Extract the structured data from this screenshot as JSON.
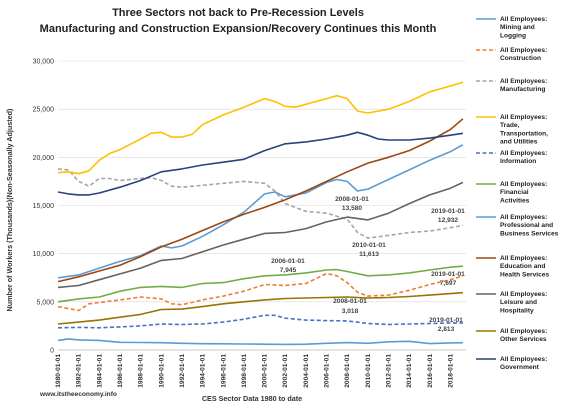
{
  "chart_data": {
    "type": "line",
    "title": "Three Sectors not back to Pre-Recession Levels",
    "subtitle": "Manufacturing and Construction Expansion/Recovery Continues this Month",
    "ylabel": "Number of Workers (Thousands)(Non-Seasonally Adjusted)",
    "xlabel": "CES Sector Data 1980 to date",
    "source": "www.itstheeconomy.info",
    "ylim": [
      0,
      30000
    ],
    "yticks": [
      0,
      5000,
      10000,
      15000,
      20000,
      25000,
      30000
    ],
    "ytick_labels": [
      "0",
      "5,000",
      "10,000",
      "15,000",
      "20,000",
      "25,000",
      "30,000"
    ],
    "xlim": [
      1980,
      2019.5
    ],
    "xticks": [
      1980,
      1982,
      1984,
      1986,
      1988,
      1990,
      1992,
      1994,
      1996,
      1998,
      2000,
      2002,
      2004,
      2006,
      2008,
      2010,
      2012,
      2014,
      2016,
      2018
    ],
    "xtick_labels": [
      "1980-01-01",
      "1982-01-01",
      "1984-01-01",
      "1986-01-01",
      "1988-01-01",
      "1990-01-01",
      "1992-01-01",
      "1994-01-01",
      "1996-01-01",
      "1998-01-01",
      "2000-01-01",
      "2002-01-01",
      "2004-01-01",
      "2006-01-01",
      "2008-01-01",
      "2010-01-01",
      "2012-01-01",
      "2014-01-01",
      "2016-01-01",
      "2018-01-01"
    ],
    "grid": "horizontal",
    "legend_position": "right",
    "series": [
      {
        "name": "All Employees: Mining and Logging",
        "color": "#5b9bd5",
        "dash": "solid",
        "points": [
          [
            1980,
            1000
          ],
          [
            1981,
            1150
          ],
          [
            1982,
            1050
          ],
          [
            1984,
            1000
          ],
          [
            1986,
            800
          ],
          [
            1988,
            780
          ],
          [
            1990,
            760
          ],
          [
            1992,
            700
          ],
          [
            1994,
            650
          ],
          [
            1996,
            640
          ],
          [
            1998,
            620
          ],
          [
            2000,
            600
          ],
          [
            2002,
            580
          ],
          [
            2004,
            600
          ],
          [
            2006,
            700
          ],
          [
            2008,
            770
          ],
          [
            2010,
            700
          ],
          [
            2012,
            850
          ],
          [
            2014,
            900
          ],
          [
            2016,
            660
          ],
          [
            2018,
            740
          ],
          [
            2019.2,
            760
          ]
        ]
      },
      {
        "name": "All Employees: Construction",
        "color": "#ed7d31",
        "dash": "dashed",
        "points": [
          [
            1980,
            4500
          ],
          [
            1982,
            4100
          ],
          [
            1983,
            4800
          ],
          [
            1986,
            5200
          ],
          [
            1988,
            5500
          ],
          [
            1990,
            5300
          ],
          [
            1991,
            4800
          ],
          [
            1992,
            4700
          ],
          [
            1994,
            5200
          ],
          [
            1996,
            5600
          ],
          [
            1998,
            6100
          ],
          [
            2000,
            6800
          ],
          [
            2002,
            6700
          ],
          [
            2004,
            6900
          ],
          [
            2006,
            7945
          ],
          [
            2007,
            7700
          ],
          [
            2008,
            7000
          ],
          [
            2009,
            6000
          ],
          [
            2010,
            5600
          ],
          [
            2012,
            5700
          ],
          [
            2014,
            6200
          ],
          [
            2016,
            6800
          ],
          [
            2018,
            7300
          ],
          [
            2019.2,
            7697
          ]
        ]
      },
      {
        "name": "All Employees: Manufacturing",
        "color": "#a5a5a5",
        "dash": "dashed",
        "points": [
          [
            1980,
            18800
          ],
          [
            1981,
            18700
          ],
          [
            1982,
            17500
          ],
          [
            1983,
            17000
          ],
          [
            1984,
            17800
          ],
          [
            1985,
            17800
          ],
          [
            1986,
            17600
          ],
          [
            1988,
            17800
          ],
          [
            1989,
            17900
          ],
          [
            1990,
            17600
          ],
          [
            1991,
            17000
          ],
          [
            1992,
            16900
          ],
          [
            1994,
            17100
          ],
          [
            1996,
            17300
          ],
          [
            1998,
            17500
          ],
          [
            2000,
            17300
          ],
          [
            2001,
            16500
          ],
          [
            2002,
            15200
          ],
          [
            2004,
            14400
          ],
          [
            2006,
            14200
          ],
          [
            2008,
            13580
          ],
          [
            2009,
            12200
          ],
          [
            2010,
            11613
          ],
          [
            2012,
            11900
          ],
          [
            2014,
            12200
          ],
          [
            2016,
            12350
          ],
          [
            2018,
            12700
          ],
          [
            2019.2,
            12932
          ]
        ]
      },
      {
        "name": "All Employees: Trade, Transportation, and Utilities",
        "color": "#ffc000",
        "dash": "solid",
        "points": [
          [
            1980,
            18400
          ],
          [
            1981,
            18500
          ],
          [
            1982,
            18300
          ],
          [
            1983,
            18600
          ],
          [
            1984,
            19700
          ],
          [
            1985,
            20400
          ],
          [
            1986,
            20800
          ],
          [
            1988,
            21900
          ],
          [
            1989,
            22500
          ],
          [
            1990,
            22600
          ],
          [
            1991,
            22100
          ],
          [
            1992,
            22100
          ],
          [
            1993,
            22400
          ],
          [
            1994,
            23400
          ],
          [
            1996,
            24400
          ],
          [
            1998,
            25200
          ],
          [
            2000,
            26100
          ],
          [
            2001,
            25800
          ],
          [
            2002,
            25300
          ],
          [
            2003,
            25200
          ],
          [
            2004,
            25500
          ],
          [
            2006,
            26100
          ],
          [
            2007,
            26400
          ],
          [
            2008,
            26100
          ],
          [
            2009,
            24800
          ],
          [
            2010,
            24600
          ],
          [
            2012,
            25000
          ],
          [
            2014,
            25800
          ],
          [
            2016,
            26800
          ],
          [
            2018,
            27400
          ],
          [
            2019.2,
            27800
          ]
        ]
      },
      {
        "name": "All Employees: Information",
        "color": "#4472c4",
        "dash": "dashed",
        "points": [
          [
            1980,
            2300
          ],
          [
            1982,
            2350
          ],
          [
            1984,
            2300
          ],
          [
            1986,
            2400
          ],
          [
            1988,
            2500
          ],
          [
            1990,
            2700
          ],
          [
            1992,
            2650
          ],
          [
            1994,
            2700
          ],
          [
            1996,
            2900
          ],
          [
            1998,
            3200
          ],
          [
            2000,
            3600
          ],
          [
            2001,
            3600
          ],
          [
            2002,
            3300
          ],
          [
            2004,
            3100
          ],
          [
            2006,
            3050
          ],
          [
            2008,
            3018
          ],
          [
            2010,
            2750
          ],
          [
            2012,
            2650
          ],
          [
            2014,
            2700
          ],
          [
            2016,
            2750
          ],
          [
            2018,
            2800
          ],
          [
            2019.2,
            2813
          ]
        ]
      },
      {
        "name": "All Employees: Financial Activities",
        "color": "#70ad47",
        "dash": "solid",
        "points": [
          [
            1980,
            5000
          ],
          [
            1982,
            5300
          ],
          [
            1984,
            5500
          ],
          [
            1986,
            6100
          ],
          [
            1988,
            6500
          ],
          [
            1990,
            6600
          ],
          [
            1992,
            6500
          ],
          [
            1994,
            6900
          ],
          [
            1996,
            7000
          ],
          [
            1998,
            7400
          ],
          [
            2000,
            7700
          ],
          [
            2002,
            7800
          ],
          [
            2004,
            8000
          ],
          [
            2006,
            8300
          ],
          [
            2007,
            8350
          ],
          [
            2008,
            8150
          ],
          [
            2010,
            7700
          ],
          [
            2012,
            7800
          ],
          [
            2014,
            8000
          ],
          [
            2016,
            8300
          ],
          [
            2018,
            8600
          ],
          [
            2019.2,
            8700
          ]
        ]
      },
      {
        "name": "All Employees: Professional and Business Services",
        "color": "#5b9bd5",
        "dash": "solid",
        "points": [
          [
            1980,
            7500
          ],
          [
            1982,
            7800
          ],
          [
            1984,
            8500
          ],
          [
            1986,
            9200
          ],
          [
            1988,
            9800
          ],
          [
            1990,
            10800
          ],
          [
            1991,
            10600
          ],
          [
            1992,
            10800
          ],
          [
            1994,
            11800
          ],
          [
            1996,
            13000
          ],
          [
            1998,
            14300
          ],
          [
            2000,
            16200
          ],
          [
            2001,
            16400
          ],
          [
            2002,
            15900
          ],
          [
            2004,
            16300
          ],
          [
            2006,
            17400
          ],
          [
            2007,
            17700
          ],
          [
            2008,
            17500
          ],
          [
            2009,
            16500
          ],
          [
            2010,
            16700
          ],
          [
            2012,
            17700
          ],
          [
            2014,
            18700
          ],
          [
            2016,
            19700
          ],
          [
            2018,
            20600
          ],
          [
            2019.2,
            21300
          ]
        ]
      },
      {
        "name": "All Employees: Education and Health Services",
        "color": "#9e480e",
        "dash": "solid",
        "points": [
          [
            1980,
            7100
          ],
          [
            1982,
            7600
          ],
          [
            1984,
            8200
          ],
          [
            1986,
            8800
          ],
          [
            1988,
            9700
          ],
          [
            1990,
            10700
          ],
          [
            1992,
            11500
          ],
          [
            1994,
            12400
          ],
          [
            1996,
            13300
          ],
          [
            1998,
            14100
          ],
          [
            2000,
            14800
          ],
          [
            2002,
            15600
          ],
          [
            2004,
            16500
          ],
          [
            2006,
            17500
          ],
          [
            2008,
            18500
          ],
          [
            2010,
            19400
          ],
          [
            2012,
            20000
          ],
          [
            2014,
            20700
          ],
          [
            2016,
            21700
          ],
          [
            2018,
            22900
          ],
          [
            2019.2,
            24000
          ]
        ]
      },
      {
        "name": "All Employees: Leisure and Hospitality",
        "color": "#636363",
        "dash": "solid",
        "points": [
          [
            1980,
            6500
          ],
          [
            1982,
            6700
          ],
          [
            1984,
            7300
          ],
          [
            1986,
            7900
          ],
          [
            1988,
            8500
          ],
          [
            1990,
            9300
          ],
          [
            1992,
            9500
          ],
          [
            1994,
            10200
          ],
          [
            1996,
            10900
          ],
          [
            1998,
            11500
          ],
          [
            2000,
            12100
          ],
          [
            2002,
            12200
          ],
          [
            2004,
            12600
          ],
          [
            2006,
            13300
          ],
          [
            2008,
            13800
          ],
          [
            2010,
            13500
          ],
          [
            2012,
            14200
          ],
          [
            2014,
            15200
          ],
          [
            2016,
            16100
          ],
          [
            2018,
            16800
          ],
          [
            2019.2,
            17400
          ]
        ]
      },
      {
        "name": "All Employees: Other Services",
        "color": "#997300",
        "dash": "solid",
        "points": [
          [
            1980,
            2700
          ],
          [
            1982,
            2900
          ],
          [
            1984,
            3100
          ],
          [
            1986,
            3400
          ],
          [
            1988,
            3700
          ],
          [
            1990,
            4200
          ],
          [
            1992,
            4250
          ],
          [
            1994,
            4500
          ],
          [
            1996,
            4800
          ],
          [
            1998,
            5000
          ],
          [
            2000,
            5200
          ],
          [
            2002,
            5350
          ],
          [
            2004,
            5400
          ],
          [
            2006,
            5450
          ],
          [
            2008,
            5500
          ],
          [
            2010,
            5400
          ],
          [
            2012,
            5450
          ],
          [
            2014,
            5550
          ],
          [
            2016,
            5700
          ],
          [
            2018,
            5850
          ],
          [
            2019.2,
            5950
          ]
        ]
      },
      {
        "name": "All Employees: Government",
        "color": "#264478",
        "dash": "solid",
        "points": [
          [
            1980,
            16400
          ],
          [
            1981,
            16200
          ],
          [
            1982,
            16100
          ],
          [
            1983,
            16100
          ],
          [
            1984,
            16300
          ],
          [
            1986,
            16900
          ],
          [
            1988,
            17600
          ],
          [
            1990,
            18500
          ],
          [
            1992,
            18800
          ],
          [
            1994,
            19200
          ],
          [
            1996,
            19500
          ],
          [
            1998,
            19800
          ],
          [
            2000,
            20700
          ],
          [
            2002,
            21400
          ],
          [
            2004,
            21600
          ],
          [
            2006,
            21900
          ],
          [
            2008,
            22300
          ],
          [
            2009,
            22600
          ],
          [
            2010,
            22300
          ],
          [
            2011,
            21900
          ],
          [
            2012,
            21800
          ],
          [
            2014,
            21800
          ],
          [
            2016,
            22000
          ],
          [
            2018,
            22300
          ],
          [
            2019.2,
            22500
          ]
        ]
      }
    ],
    "annotations": [
      {
        "date": "2006-01-01",
        "value": "7,945",
        "x": 2006,
        "y": 7945
      },
      {
        "date": "2008-01-01",
        "value": "13,580",
        "x": 2008,
        "y": 13580
      },
      {
        "date": "2010-01-01",
        "value": "11,613",
        "x": 2010,
        "y": 11613
      },
      {
        "date": "2019-01-01",
        "value": "12,932",
        "x": 2019,
        "y": 12932
      },
      {
        "date": "2019-01-01",
        "value": "7,697",
        "x": 2019,
        "y": 7697
      },
      {
        "date": "2008-01-01",
        "value": "3,018",
        "x": 2008,
        "y": 3018
      },
      {
        "date": "2019-01-01",
        "value": "2,813",
        "x": 2019,
        "y": 2813
      }
    ]
  }
}
